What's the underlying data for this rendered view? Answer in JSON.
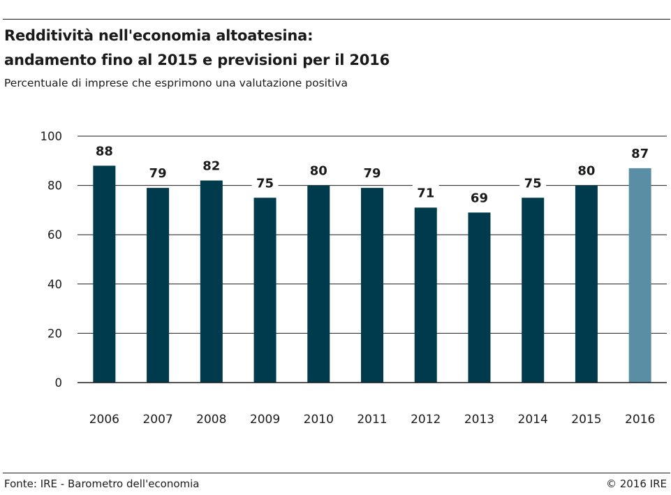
{
  "title_line1": "Redditività nell'economia altoatesina:",
  "title_line2": "andamento fino al 2015 e previsioni per il 2016",
  "subtitle": "Percentuale di imprese che esprimono una valutazione positiva",
  "source": "Fonte: IRE - Barometro dell'economia",
  "copyright": "© 2016 IRE",
  "colors": {
    "actual": "#003a4d",
    "forecast": "#5a8ea4",
    "grid": "#1a1a1a"
  },
  "chart_data": {
    "type": "bar",
    "categories": [
      "2006",
      "2007",
      "2008",
      "2009",
      "2010",
      "2011",
      "2012",
      "2013",
      "2014",
      "2015",
      "2016"
    ],
    "values": [
      88,
      79,
      82,
      75,
      80,
      79,
      71,
      69,
      75,
      80,
      87
    ],
    "forecast_categories": [
      "2016"
    ],
    "yticks": [
      0,
      20,
      40,
      60,
      80,
      100
    ],
    "ylim": [
      0,
      100
    ],
    "grid": true,
    "value_labels": true,
    "title": "",
    "xlabel": "",
    "ylabel": ""
  }
}
